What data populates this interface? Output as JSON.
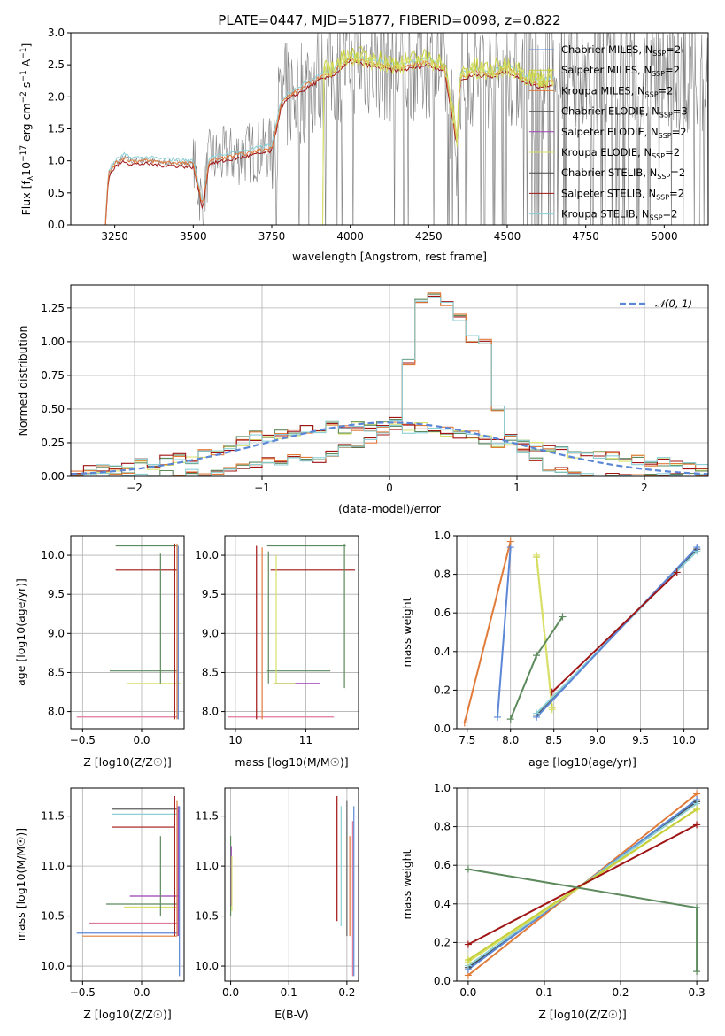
{
  "colors": {
    "chabrier_miles": "#5b87d6",
    "salpeter_miles": "#c6cf3c",
    "kroupa_miles": "#e07b3a",
    "chabrier_elodie": "#5d5d5d",
    "salpeter_elodie": "#9b3fb5",
    "kroupa_elodie": "#d8e06a",
    "chabrier_stelib": "#4a4a4a",
    "salpeter_stelib": "#a01414",
    "kroupa_stelib": "#8ccfd6",
    "green": "#5d8a5d",
    "pink": "#e07a9a",
    "normal": "#5b87d6"
  },
  "chart_data": [
    {
      "id": "spectrum",
      "type": "line",
      "title": "PLATE=0447, MJD=51877, FIBERID=0098, z=0.822",
      "xlabel": "wavelength [Angstrom, rest frame]",
      "ylabel": "Flux [f_λ 10^-17 erg cm^-2 s^-1 A^-1]",
      "xlim": [
        3110,
        5140
      ],
      "ylim": [
        0,
        3.0
      ],
      "xticks": [
        "3250",
        "3500",
        "3750",
        "4000",
        "4250",
        "4500",
        "4750",
        "5000"
      ],
      "yticks": [
        "0.0",
        "0.5",
        "1.0",
        "1.5",
        "2.0",
        "2.5",
        "3.0"
      ],
      "legend": [
        {
          "label": "Chabrier MILES, N",
          "sub": "SSP",
          "suffix": "=2",
          "color": "#5b87d6"
        },
        {
          "label": "Salpeter MILES, N",
          "sub": "SSP",
          "suffix": "=2",
          "color": "#c6cf3c"
        },
        {
          "label": "Kroupa MILES, N",
          "sub": "SSP",
          "suffix": "=2",
          "color": "#e07b3a"
        },
        {
          "label": "Chabrier ELODIE, N",
          "sub": "SSP",
          "suffix": "=3",
          "color": "#5d5d5d"
        },
        {
          "label": "Salpeter ELODIE, N",
          "sub": "SSP",
          "suffix": "=2",
          "color": "#9b3fb5"
        },
        {
          "label": "Kroupa ELODIE, N",
          "sub": "SSP",
          "suffix": "=2",
          "color": "#d8e06a"
        },
        {
          "label": "Chabrier STELIB, N",
          "sub": "SSP",
          "suffix": "=2",
          "color": "#4a4a4a"
        },
        {
          "label": "Salpeter STELIB, N",
          "sub": "SSP",
          "suffix": "=2",
          "color": "#a01414"
        },
        {
          "label": "Kroupa STELIB, N",
          "sub": "SSP",
          "suffix": "=2",
          "color": "#8ccfd6"
        }
      ],
      "model_continuum": {
        "x": [
          3220,
          3230,
          3250,
          3280,
          3300,
          3330,
          3360,
          3400,
          3450,
          3500,
          3530,
          3550,
          3600,
          3650,
          3700,
          3750,
          3780,
          3800,
          3850,
          3900,
          3950,
          4000,
          4050,
          4100,
          4150,
          4200,
          4250,
          4300,
          4340,
          4350,
          4400,
          4450,
          4500,
          4550,
          4600,
          4650
        ],
        "y": [
          0.0,
          0.8,
          0.95,
          1.05,
          1.0,
          1.0,
          1.0,
          0.98,
          0.97,
          0.95,
          0.3,
          1.0,
          1.05,
          1.1,
          1.15,
          1.2,
          1.9,
          2.0,
          2.15,
          2.3,
          2.4,
          2.6,
          2.55,
          2.5,
          2.45,
          2.5,
          2.55,
          2.45,
          1.3,
          2.3,
          2.4,
          2.35,
          2.45,
          2.3,
          2.2,
          2.25
        ]
      },
      "data_range": [
        3230,
        5140
      ]
    },
    {
      "id": "residuals",
      "type": "histogram",
      "xlabel": "(data-model)/error",
      "ylabel": "Normed distribution",
      "xlim": [
        -2.5,
        2.5
      ],
      "ylim": [
        0,
        1.42
      ],
      "xticks": [
        "−2",
        "−1",
        "0",
        "1",
        "2"
      ],
      "yticks": [
        "0.00",
        "0.25",
        "0.50",
        "0.75",
        "1.00",
        "1.25"
      ],
      "legend": [
        {
          "label": "𝒩(0, 1)",
          "color": "#5b87d6"
        }
      ],
      "bin_width": 0.1,
      "bin_start": -2.5,
      "narrow_series": [
        0.0,
        0.0,
        0.0,
        0.0,
        0.0,
        0.0,
        0.0,
        0.02,
        0.0,
        0.03,
        0.02,
        0.04,
        0.05,
        0.07,
        0.08,
        0.12,
        0.1,
        0.14,
        0.13,
        0.12,
        0.17,
        0.22,
        0.23,
        0.27,
        0.33,
        0.42,
        0.85,
        1.3,
        1.35,
        1.28,
        1.18,
        1.02,
        1.0,
        0.5,
        0.3,
        0.2,
        0.12,
        0.06,
        0.05,
        0.02,
        0.01,
        0.0,
        0.0,
        0.0,
        0.0,
        0.0,
        0.0,
        0.0,
        0.0,
        0.0
      ],
      "wide_series": [
        0.03,
        0.05,
        0.05,
        0.05,
        0.06,
        0.1,
        0.08,
        0.12,
        0.14,
        0.12,
        0.17,
        0.18,
        0.22,
        0.26,
        0.3,
        0.29,
        0.32,
        0.34,
        0.35,
        0.36,
        0.4,
        0.35,
        0.38,
        0.36,
        0.4,
        0.38,
        0.36,
        0.36,
        0.35,
        0.33,
        0.32,
        0.3,
        0.28,
        0.25,
        0.26,
        0.23,
        0.22,
        0.21,
        0.18,
        0.17,
        0.16,
        0.15,
        0.16,
        0.13,
        0.12,
        0.1,
        0.1,
        0.08,
        0.07,
        0.06
      ]
    },
    {
      "id": "z_age",
      "type": "errorbar",
      "xlabel": "Z [log10(Z/Z☉)]",
      "ylabel": "age  [log10(age/yr)]",
      "xlim": [
        -0.6,
        0.36
      ],
      "ylim": [
        7.78,
        10.25
      ],
      "xticks": [
        "−0.5",
        "0.0"
      ],
      "yticks": [
        "8.0",
        "8.5",
        "9.0",
        "9.5",
        "10.0"
      ],
      "hbars": [
        {
          "y": 10.12,
          "x0": -0.22,
          "x1": 0.3,
          "color": "#5d8a5d"
        },
        {
          "y": 9.81,
          "x0": -0.22,
          "x1": 0.3,
          "color": "#a01414"
        },
        {
          "y": 8.52,
          "x0": -0.27,
          "x1": 0.3,
          "color": "#5d8a5d"
        },
        {
          "y": 8.36,
          "x0": -0.12,
          "x1": 0.33,
          "color": "#d8e06a"
        },
        {
          "y": 7.93,
          "x0": -0.55,
          "x1": 0.3,
          "color": "#e07a9a"
        }
      ],
      "vbars": [
        {
          "x": 0.16,
          "y0": 8.36,
          "y1": 10.02,
          "color": "#5d8a5d"
        },
        {
          "x": 0.28,
          "y0": 7.9,
          "y1": 10.15,
          "color": "#a01414"
        },
        {
          "x": 0.3,
          "y0": 7.9,
          "y1": 10.15,
          "color": "#e07b3a"
        },
        {
          "x": 0.31,
          "y0": 7.9,
          "y1": 10.12,
          "color": "#5b87d6"
        }
      ]
    },
    {
      "id": "mass_age",
      "type": "errorbar",
      "xlabel": "mass [log10(M/M☉)]",
      "ylabel": "",
      "xlim": [
        9.85,
        11.75
      ],
      "ylim": [
        7.78,
        10.25
      ],
      "xticks": [
        "10",
        "11"
      ],
      "yticks": [
        "8.0",
        "8.5",
        "9.0",
        "9.5",
        "10.0"
      ],
      "hbars": [
        {
          "y": 10.12,
          "x0": 10.45,
          "x1": 11.57,
          "color": "#5d8a5d"
        },
        {
          "y": 9.81,
          "x0": 10.5,
          "x1": 11.7,
          "color": "#a01414"
        },
        {
          "y": 8.52,
          "x0": 10.45,
          "x1": 11.35,
          "color": "#5d8a5d"
        },
        {
          "y": 8.36,
          "x0": 10.55,
          "x1": 11.2,
          "color": "#9b3fb5"
        },
        {
          "y": 8.36,
          "x0": 10.55,
          "x1": 10.85,
          "color": "#d8e06a"
        },
        {
          "y": 7.93,
          "x0": 9.9,
          "x1": 11.4,
          "color": "#e07a9a"
        }
      ],
      "vbars": [
        {
          "x": 10.3,
          "y0": 7.9,
          "y1": 10.12,
          "color": "#a01414"
        },
        {
          "x": 10.38,
          "y0": 7.9,
          "y1": 10.1,
          "color": "#e07b3a"
        },
        {
          "x": 10.47,
          "y0": 8.36,
          "y1": 10.05,
          "color": "#5d8a5d"
        },
        {
          "x": 10.58,
          "y0": 8.36,
          "y1": 10.0,
          "color": "#d8e06a"
        },
        {
          "x": 11.55,
          "y0": 8.3,
          "y1": 10.15,
          "color": "#5d8a5d"
        }
      ]
    },
    {
      "id": "age_weight",
      "type": "line",
      "xlabel": "age  [log10(age/yr)]",
      "ylabel": "mass weight",
      "xlim": [
        7.38,
        10.28
      ],
      "ylim": [
        0,
        1.0
      ],
      "xticks": [
        "7.5",
        "8.0",
        "8.5",
        "9.0",
        "9.5",
        "10.0"
      ],
      "yticks": [
        "0.0",
        "0.2",
        "0.4",
        "0.6",
        "0.8",
        "1.0"
      ],
      "series": [
        {
          "color": "#5b87d6",
          "x": [
            7.85,
            8.0
          ],
          "y": [
            0.06,
            0.94
          ]
        },
        {
          "color": "#e07b3a",
          "x": [
            7.47,
            8.0
          ],
          "y": [
            0.03,
            0.97
          ]
        },
        {
          "color": "#c6cf3c",
          "x": [
            8.3,
            8.48
          ],
          "y": [
            0.89,
            0.11
          ]
        },
        {
          "color": "#d8e06a",
          "x": [
            8.3,
            8.48
          ],
          "y": [
            0.9,
            0.1
          ]
        },
        {
          "color": "#5d8a5d",
          "x": [
            8.0,
            8.3,
            8.6
          ],
          "y": [
            0.05,
            0.38,
            0.58
          ]
        },
        {
          "color": "#4a4a4a",
          "x": [
            8.3,
            10.15
          ],
          "y": [
            0.07,
            0.93
          ]
        },
        {
          "color": "#8ccfd6",
          "x": [
            8.3,
            10.15
          ],
          "y": [
            0.08,
            0.92
          ]
        },
        {
          "color": "#5b87d6",
          "x": [
            8.3,
            10.15
          ],
          "y": [
            0.06,
            0.94
          ]
        },
        {
          "color": "#a01414",
          "x": [
            8.48,
            9.92
          ],
          "y": [
            0.19,
            0.81
          ]
        }
      ]
    },
    {
      "id": "z_mass",
      "type": "errorbar",
      "xlabel": "Z [log10(Z/Z☉)]",
      "ylabel": "mass [log10(M/M☉)]",
      "xlim": [
        -0.6,
        0.36
      ],
      "ylim": [
        9.85,
        11.78
      ],
      "xticks": [
        "−0.5",
        "0.0"
      ],
      "yticks": [
        "10.0",
        "10.5",
        "11.0",
        "11.5"
      ],
      "hbars": [
        {
          "y": 11.57,
          "x0": -0.25,
          "x1": 0.3,
          "color": "#5d5d5d"
        },
        {
          "y": 11.52,
          "x0": -0.25,
          "x1": 0.3,
          "color": "#8ccfd6"
        },
        {
          "y": 11.39,
          "x0": -0.25,
          "x1": 0.28,
          "color": "#a01414"
        },
        {
          "y": 10.7,
          "x0": -0.1,
          "x1": 0.32,
          "color": "#9b3fb5"
        },
        {
          "y": 10.62,
          "x0": -0.3,
          "x1": 0.3,
          "color": "#5d8a5d"
        },
        {
          "y": 10.59,
          "x0": -0.15,
          "x1": 0.3,
          "color": "#d8e06a"
        },
        {
          "y": 10.43,
          "x0": -0.45,
          "x1": 0.3,
          "color": "#e07a9a"
        },
        {
          "y": 10.33,
          "x0": -0.55,
          "x1": 0.3,
          "color": "#5b87d6"
        },
        {
          "y": 10.3,
          "x0": -0.5,
          "x1": 0.3,
          "color": "#e07b3a"
        }
      ],
      "vbars": [
        {
          "x": 0.16,
          "y0": 10.5,
          "y1": 11.3,
          "color": "#5d8a5d"
        },
        {
          "x": 0.28,
          "y0": 10.3,
          "y1": 11.7,
          "color": "#a01414"
        },
        {
          "x": 0.3,
          "y0": 10.3,
          "y1": 11.65,
          "color": "#e07b3a"
        },
        {
          "x": 0.31,
          "y0": 10.3,
          "y1": 11.6,
          "color": "#9b3fb5"
        },
        {
          "x": 0.32,
          "y0": 9.9,
          "y1": 11.6,
          "color": "#5b87d6"
        }
      ]
    },
    {
      "id": "ebv_mass",
      "type": "errorbar",
      "xlabel": "E(B-V)",
      "ylabel": "",
      "xlim": [
        -0.01,
        0.22
      ],
      "ylim": [
        9.85,
        11.78
      ],
      "xticks": [
        "0.0",
        "0.1",
        "0.2"
      ],
      "yticks": [
        "10.0",
        "10.5",
        "11.0",
        "11.5"
      ],
      "hbars": [],
      "vbars": [
        {
          "x": 0.0,
          "y0": 10.5,
          "y1": 11.3,
          "color": "#5d8a5d"
        },
        {
          "x": 0.001,
          "y0": 10.6,
          "y1": 11.2,
          "color": "#9b3fb5"
        },
        {
          "x": 0.002,
          "y0": 10.55,
          "y1": 11.1,
          "color": "#d8e06a"
        },
        {
          "x": 0.183,
          "y0": 10.45,
          "y1": 11.7,
          "color": "#a01414"
        },
        {
          "x": 0.19,
          "y0": 10.4,
          "y1": 11.6,
          "color": "#8ccfd6"
        },
        {
          "x": 0.2,
          "y0": 10.3,
          "y1": 11.65,
          "color": "#5d5d5d"
        },
        {
          "x": 0.205,
          "y0": 10.3,
          "y1": 11.3,
          "color": "#e07b3a"
        },
        {
          "x": 0.21,
          "y0": 9.9,
          "y1": 11.45,
          "color": "#e07a9a"
        },
        {
          "x": 0.212,
          "y0": 9.9,
          "y1": 11.6,
          "color": "#5b87d6"
        }
      ]
    },
    {
      "id": "z_weight",
      "type": "line",
      "xlabel": "Z [log10(Z/Z☉)]",
      "ylabel": "mass weight",
      "xlim": [
        -0.015,
        0.315
      ],
      "ylim": [
        0,
        1.0
      ],
      "xticks": [
        "0.0",
        "0.1",
        "0.2",
        "0.3"
      ],
      "yticks": [
        "0.0",
        "0.2",
        "0.4",
        "0.6",
        "0.8",
        "1.0"
      ],
      "series": [
        {
          "color": "#e07b3a",
          "x": [
            0.0,
            0.3
          ],
          "y": [
            0.03,
            0.97
          ]
        },
        {
          "color": "#4a4a4a",
          "x": [
            0.0,
            0.3
          ],
          "y": [
            0.07,
            0.93
          ]
        },
        {
          "color": "#5b87d6",
          "x": [
            0.0,
            0.3
          ],
          "y": [
            0.06,
            0.94
          ]
        },
        {
          "color": "#8ccfd6",
          "x": [
            0.0,
            0.3
          ],
          "y": [
            0.08,
            0.92
          ]
        },
        {
          "color": "#d8e06a",
          "x": [
            0.0,
            0.3
          ],
          "y": [
            0.1,
            0.89
          ]
        },
        {
          "color": "#c6cf3c",
          "x": [
            0.0,
            0.3
          ],
          "y": [
            0.11,
            0.89
          ]
        },
        {
          "color": "#a01414",
          "x": [
            0.0,
            0.3
          ],
          "y": [
            0.19,
            0.81
          ]
        },
        {
          "color": "#5d8a5d",
          "x": [
            0.0,
            0.3,
            0.3
          ],
          "y": [
            0.58,
            0.38,
            0.05
          ]
        }
      ]
    }
  ]
}
